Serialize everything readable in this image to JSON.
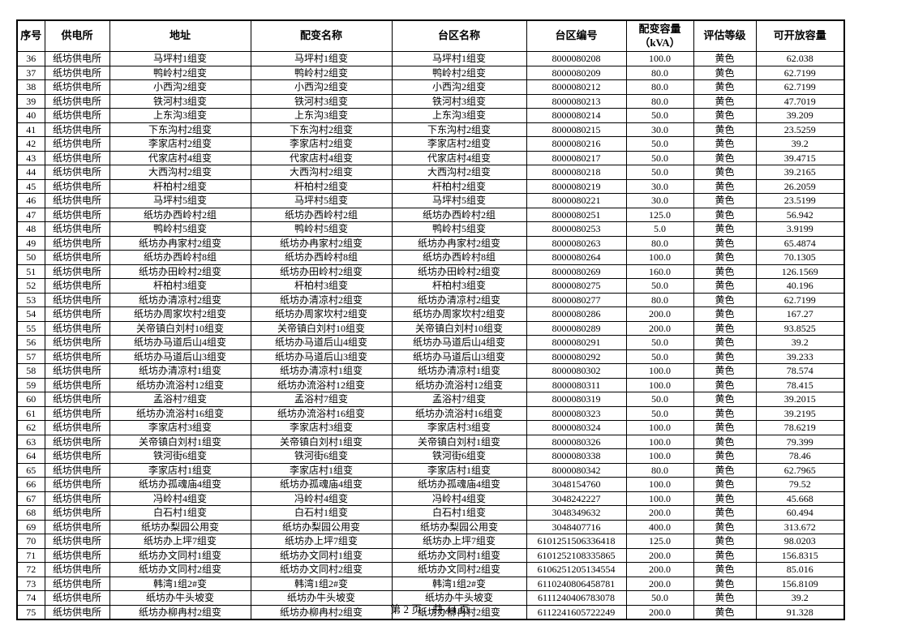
{
  "page": {
    "footer_text": "第 2 页，共 44 页"
  },
  "table": {
    "headers": [
      "序号",
      "供电所",
      "地址",
      "配变名称",
      "台区名称",
      "台区编号",
      "配变容量\n（kVA）",
      "评估等级",
      "可开放容量"
    ],
    "rows": [
      [
        "36",
        "纸坊供电所",
        "马坪村1组变",
        "马坪村1组变",
        "马坪村1组变",
        "8000080208",
        "100.0",
        "黄色",
        "62.038"
      ],
      [
        "37",
        "纸坊供电所",
        "鸭岭村2组变",
        "鸭岭村2组变",
        "鸭岭村2组变",
        "8000080209",
        "80.0",
        "黄色",
        "62.7199"
      ],
      [
        "38",
        "纸坊供电所",
        "小西沟2组变",
        "小西沟2组变",
        "小西沟2组变",
        "8000080212",
        "80.0",
        "黄色",
        "62.7199"
      ],
      [
        "39",
        "纸坊供电所",
        "铁河村3组变",
        "铁河村3组变",
        "铁河村3组变",
        "8000080213",
        "80.0",
        "黄色",
        "47.7019"
      ],
      [
        "40",
        "纸坊供电所",
        "上东沟3组变",
        "上东沟3组变",
        "上东沟3组变",
        "8000080214",
        "50.0",
        "黄色",
        "39.209"
      ],
      [
        "41",
        "纸坊供电所",
        "下东沟村2组变",
        "下东沟村2组变",
        "下东沟村2组变",
        "8000080215",
        "30.0",
        "黄色",
        "23.5259"
      ],
      [
        "42",
        "纸坊供电所",
        "李家店村2组变",
        "李家店村2组变",
        "李家店村2组变",
        "8000080216",
        "50.0",
        "黄色",
        "39.2"
      ],
      [
        "43",
        "纸坊供电所",
        "代家店村4组变",
        "代家店村4组变",
        "代家店村4组变",
        "8000080217",
        "50.0",
        "黄色",
        "39.4715"
      ],
      [
        "44",
        "纸坊供电所",
        "大西沟村2组变",
        "大西沟村2组变",
        "大西沟村2组变",
        "8000080218",
        "50.0",
        "黄色",
        "39.2165"
      ],
      [
        "45",
        "纸坊供电所",
        "杆柏村2组变",
        "杆柏村2组变",
        "杆柏村2组变",
        "8000080219",
        "30.0",
        "黄色",
        "26.2059"
      ],
      [
        "46",
        "纸坊供电所",
        "马坪村5组变",
        "马坪村5组变",
        "马坪村5组变",
        "8000080221",
        "30.0",
        "黄色",
        "23.5199"
      ],
      [
        "47",
        "纸坊供电所",
        "纸坊办西岭村2组",
        "纸坊办西岭村2组",
        "纸坊办西岭村2组",
        "8000080251",
        "125.0",
        "黄色",
        "56.942"
      ],
      [
        "48",
        "纸坊供电所",
        "鸭岭村5组变",
        "鸭岭村5组变",
        "鸭岭村5组变",
        "8000080253",
        "5.0",
        "黄色",
        "3.9199"
      ],
      [
        "49",
        "纸坊供电所",
        "纸坊办冉家村2组变",
        "纸坊办冉家村2组变",
        "纸坊办冉家村2组变",
        "8000080263",
        "80.0",
        "黄色",
        "65.4874"
      ],
      [
        "50",
        "纸坊供电所",
        "纸坊办西岭村8组",
        "纸坊办西岭村8组",
        "纸坊办西岭村8组",
        "8000080264",
        "100.0",
        "黄色",
        "70.1305"
      ],
      [
        "51",
        "纸坊供电所",
        "纸坊办田岭村2组变",
        "纸坊办田岭村2组变",
        "纸坊办田岭村2组变",
        "8000080269",
        "160.0",
        "黄色",
        "126.1569"
      ],
      [
        "52",
        "纸坊供电所",
        "杆柏村3组变",
        "杆柏村3组变",
        "杆柏村3组变",
        "8000080275",
        "50.0",
        "黄色",
        "40.196"
      ],
      [
        "53",
        "纸坊供电所",
        "纸坊办清凉村2组变",
        "纸坊办清凉村2组变",
        "纸坊办清凉村2组变",
        "8000080277",
        "80.0",
        "黄色",
        "62.7199"
      ],
      [
        "54",
        "纸坊供电所",
        "纸坊办周家坎村2组变",
        "纸坊办周家坎村2组变",
        "纸坊办周家坎村2组变",
        "8000080286",
        "200.0",
        "黄色",
        "167.27"
      ],
      [
        "55",
        "纸坊供电所",
        "关帝镇白刘村10组变",
        "关帝镇白刘村10组变",
        "关帝镇白刘村10组变",
        "8000080289",
        "200.0",
        "黄色",
        "93.8525"
      ],
      [
        "56",
        "纸坊供电所",
        "纸坊办马道后山4组变",
        "纸坊办马道后山4组变",
        "纸坊办马道后山4组变",
        "8000080291",
        "50.0",
        "黄色",
        "39.2"
      ],
      [
        "57",
        "纸坊供电所",
        "纸坊办马道后山3组变",
        "纸坊办马道后山3组变",
        "纸坊办马道后山3组变",
        "8000080292",
        "50.0",
        "黄色",
        "39.233"
      ],
      [
        "58",
        "纸坊供电所",
        "纸坊办清凉村1组变",
        "纸坊办清凉村1组变",
        "纸坊办清凉村1组变",
        "8000080302",
        "100.0",
        "黄色",
        "78.574"
      ],
      [
        "59",
        "纸坊供电所",
        "纸坊办流浴村12组变",
        "纸坊办流浴村12组变",
        "纸坊办流浴村12组变",
        "8000080311",
        "100.0",
        "黄色",
        "78.415"
      ],
      [
        "60",
        "纸坊供电所",
        "孟浴村7组变",
        "孟浴村7组变",
        "孟浴村7组变",
        "8000080319",
        "50.0",
        "黄色",
        "39.2015"
      ],
      [
        "61",
        "纸坊供电所",
        "纸坊办流浴村16组变",
        "纸坊办流浴村16组变",
        "纸坊办流浴村16组变",
        "8000080323",
        "50.0",
        "黄色",
        "39.2195"
      ],
      [
        "62",
        "纸坊供电所",
        "李家店村3组变",
        "李家店村3组变",
        "李家店村3组变",
        "8000080324",
        "100.0",
        "黄色",
        "78.6219"
      ],
      [
        "63",
        "纸坊供电所",
        "关帝镇白刘村1组变",
        "关帝镇白刘村1组变",
        "关帝镇白刘村1组变",
        "8000080326",
        "100.0",
        "黄色",
        "79.399"
      ],
      [
        "64",
        "纸坊供电所",
        "铁河街6组变",
        "铁河街6组变",
        "铁河街6组变",
        "8000080338",
        "100.0",
        "黄色",
        "78.46"
      ],
      [
        "65",
        "纸坊供电所",
        "李家店村1组变",
        "李家店村1组变",
        "李家店村1组变",
        "8000080342",
        "80.0",
        "黄色",
        "62.7965"
      ],
      [
        "66",
        "纸坊供电所",
        "纸坊办孤魂庙4组变",
        "纸坊办孤魂庙4组变",
        "纸坊办孤魂庙4组变",
        "3048154760",
        "100.0",
        "黄色",
        "79.52"
      ],
      [
        "67",
        "纸坊供电所",
        "冯岭村4组变",
        "冯岭村4组变",
        "冯岭村4组变",
        "3048242227",
        "100.0",
        "黄色",
        "45.668"
      ],
      [
        "68",
        "纸坊供电所",
        "白石村1组变",
        "白石村1组变",
        "白石村1组变",
        "3048349632",
        "200.0",
        "黄色",
        "60.494"
      ],
      [
        "69",
        "纸坊供电所",
        "纸坊办梨园公用变",
        "纸坊办梨园公用变",
        "纸坊办梨园公用变",
        "3048407716",
        "400.0",
        "黄色",
        "313.672"
      ],
      [
        "70",
        "纸坊供电所",
        "纸坊办上坪7组变",
        "纸坊办上坪7组变",
        "纸坊办上坪7组变",
        "6101251506336418",
        "125.0",
        "黄色",
        "98.0203"
      ],
      [
        "71",
        "纸坊供电所",
        "纸坊办文同村1组变",
        "纸坊办文同村1组变",
        "纸坊办文同村1组变",
        "6101252108335865",
        "200.0",
        "黄色",
        "156.8315"
      ],
      [
        "72",
        "纸坊供电所",
        "纸坊办文同村2组变",
        "纸坊办文同村2组变",
        "纸坊办文同村2组变",
        "6106251205134554",
        "200.0",
        "黄色",
        "85.016"
      ],
      [
        "73",
        "纸坊供电所",
        "韩湾1组2#变",
        "韩湾1组2#变",
        "韩湾1组2#变",
        "6110240806458781",
        "200.0",
        "黄色",
        "156.8109"
      ],
      [
        "74",
        "纸坊供电所",
        "纸坊办牛头坡变",
        "纸坊办牛头坡变",
        "纸坊办牛头坡变",
        "6111240406783078",
        "50.0",
        "黄色",
        "39.2"
      ],
      [
        "75",
        "纸坊供电所",
        "纸坊办柳冉村2组变",
        "纸坊办柳冉村2组变",
        "纸坊办柳冉村2组变",
        "6112241605722249",
        "200.0",
        "黄色",
        "91.328"
      ]
    ]
  }
}
